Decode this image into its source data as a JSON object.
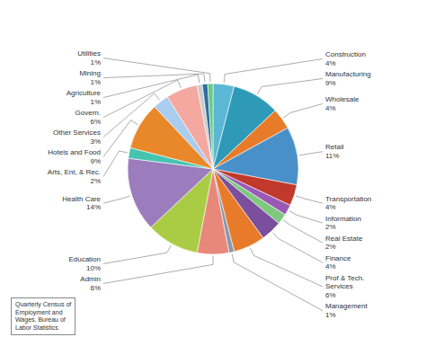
{
  "chart_data": {
    "type": "pie",
    "categories": [
      "Construction",
      "Manufacturing",
      "Wholesale",
      "Retail",
      "Transportation",
      "Information",
      "Real Estate",
      "Finance",
      "Prof & Tech.\nServices",
      "Management",
      "Admin",
      "Education",
      "Health Care",
      "Arts, Ent, & Rec.",
      "Hotels and Food",
      "Other Services",
      "Govern.",
      "Agriculture",
      "Mining",
      "Utilities"
    ],
    "values": [
      4,
      9,
      4,
      11,
      4,
      2,
      2,
      4,
      6,
      1,
      6,
      10,
      14,
      2,
      9,
      3,
      6,
      1,
      1,
      1
    ],
    "value_labels": [
      "4%",
      "9%",
      "4%",
      "11%",
      "4%",
      "2%",
      "2%",
      "4%",
      "6%",
      "1%",
      "6%",
      "10%",
      "14%",
      "2%",
      "9%",
      "3%",
      "6%",
      "1%",
      "1%",
      "1%"
    ],
    "data_labels": true,
    "colors": [
      "#5BB8D4",
      "#2E9AB8",
      "#E87B2A",
      "#4A90C8",
      "#C0392B",
      "#9B59B6",
      "#7DC97D",
      "#7B4F9E",
      "#E87B2A",
      "#8899AA",
      "#E8887A",
      "#AACC44",
      "#9B7DBE",
      "#45C4B0",
      "#E8882A",
      "#AACCEE",
      "#F4A8A0",
      "#CCCCCC",
      "#2E6E9E",
      "#66CC88"
    ],
    "annotations": [
      "Quarterly Census of\nEmployment and\nWages, Bureau of\nLabor Statistics"
    ]
  }
}
